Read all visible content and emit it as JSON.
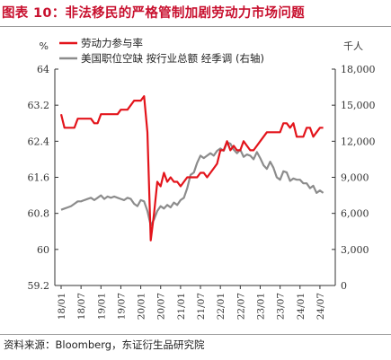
{
  "figure_title": "图表 10：非法移民的严格管制加剧劳动力市场问题",
  "source": "资料来源：Bloomberg，东证衍生品研究院",
  "colors": {
    "title": "#c8102e",
    "series_left": "#e3141b",
    "series_right": "#8c8c8c",
    "axis": "#333333"
  },
  "chart_data": {
    "type": "line",
    "left_axis": {
      "unit": "%",
      "ylim": [
        59.2,
        64.0
      ],
      "ticks": [
        "64",
        "63.2",
        "62.4",
        "61.6",
        "60.8",
        "60",
        "59.2"
      ]
    },
    "right_axis": {
      "unit": "千人",
      "ylim": [
        0,
        18000
      ],
      "ticks": [
        "18,000",
        "15,000",
        "12,000",
        "9,000",
        "6,000",
        "3,000",
        "0"
      ]
    },
    "x_ticks": [
      "18/01",
      "18/07",
      "19/01",
      "19/07",
      "20/01",
      "20/07",
      "21/01",
      "21/07",
      "22/01",
      "22/07",
      "23/01",
      "23/07",
      "24/01",
      "24/07"
    ],
    "legend_position": "top-left",
    "grid": false,
    "series": [
      {
        "name": "劳动力参与率",
        "axis": "left",
        "x": [
          "2018-01",
          "2018-02",
          "2018-03",
          "2018-04",
          "2018-05",
          "2018-06",
          "2018-07",
          "2018-08",
          "2018-09",
          "2018-10",
          "2018-11",
          "2018-12",
          "2019-01",
          "2019-02",
          "2019-03",
          "2019-04",
          "2019-05",
          "2019-06",
          "2019-07",
          "2019-08",
          "2019-09",
          "2019-10",
          "2019-11",
          "2019-12",
          "2020-01",
          "2020-02",
          "2020-03",
          "2020-04",
          "2020-05",
          "2020-06",
          "2020-07",
          "2020-08",
          "2020-09",
          "2020-10",
          "2020-11",
          "2020-12",
          "2021-01",
          "2021-02",
          "2021-03",
          "2021-04",
          "2021-05",
          "2021-06",
          "2021-07",
          "2021-08",
          "2021-09",
          "2021-10",
          "2021-11",
          "2021-12",
          "2022-01",
          "2022-02",
          "2022-03",
          "2022-04",
          "2022-05",
          "2022-06",
          "2022-07",
          "2022-08",
          "2022-09",
          "2022-10",
          "2022-11",
          "2022-12",
          "2023-01",
          "2023-02",
          "2023-03",
          "2023-04",
          "2023-05",
          "2023-06",
          "2023-07",
          "2023-08",
          "2023-09",
          "2023-10",
          "2023-11",
          "2023-12",
          "2024-01",
          "2024-02",
          "2024-03",
          "2024-04",
          "2024-05",
          "2024-06",
          "2024-07",
          "2024-08"
        ],
        "values": [
          63.0,
          62.7,
          62.7,
          62.7,
          62.7,
          62.9,
          62.9,
          62.9,
          62.9,
          62.9,
          62.8,
          62.8,
          63.0,
          63.0,
          63.0,
          63.0,
          63.0,
          63.0,
          63.1,
          63.1,
          63.1,
          63.2,
          63.3,
          63.3,
          63.3,
          63.4,
          62.6,
          60.2,
          60.8,
          61.5,
          61.4,
          61.7,
          61.5,
          61.6,
          61.5,
          61.5,
          61.4,
          61.5,
          61.6,
          61.6,
          61.6,
          61.6,
          61.7,
          61.7,
          61.6,
          61.7,
          61.8,
          61.9,
          62.2,
          62.2,
          62.4,
          62.2,
          62.3,
          62.2,
          62.2,
          62.4,
          62.3,
          62.2,
          62.2,
          62.3,
          62.4,
          62.5,
          62.6,
          62.6,
          62.6,
          62.6,
          62.6,
          62.8,
          62.8,
          62.7,
          62.8,
          62.5,
          62.5,
          62.5,
          62.7,
          62.7,
          62.5,
          62.6,
          62.7,
          62.7
        ]
      },
      {
        "name": "美国职位空缺 按行业总额 经季调 (右轴)",
        "axis": "right",
        "x": [
          "2018-01",
          "2018-02",
          "2018-03",
          "2018-04",
          "2018-05",
          "2018-06",
          "2018-07",
          "2018-08",
          "2018-09",
          "2018-10",
          "2018-11",
          "2018-12",
          "2019-01",
          "2019-02",
          "2019-03",
          "2019-04",
          "2019-05",
          "2019-06",
          "2019-07",
          "2019-08",
          "2019-09",
          "2019-10",
          "2019-11",
          "2019-12",
          "2020-01",
          "2020-02",
          "2020-03",
          "2020-04",
          "2020-05",
          "2020-06",
          "2020-07",
          "2020-08",
          "2020-09",
          "2020-10",
          "2020-11",
          "2020-12",
          "2021-01",
          "2021-02",
          "2021-03",
          "2021-04",
          "2021-05",
          "2021-06",
          "2021-07",
          "2021-08",
          "2021-09",
          "2021-10",
          "2021-11",
          "2021-12",
          "2022-01",
          "2022-02",
          "2022-03",
          "2022-04",
          "2022-05",
          "2022-06",
          "2022-07",
          "2022-08",
          "2022-09",
          "2022-10",
          "2022-11",
          "2022-12",
          "2023-01",
          "2023-02",
          "2023-03",
          "2023-04",
          "2023-05",
          "2023-06",
          "2023-07",
          "2023-08",
          "2023-09",
          "2023-10",
          "2023-11",
          "2023-12",
          "2024-01",
          "2024-02",
          "2024-03",
          "2024-04",
          "2024-05",
          "2024-06",
          "2024-07",
          "2024-08"
        ],
        "values": [
          6300,
          6400,
          6500,
          6600,
          6800,
          7000,
          7000,
          7100,
          7200,
          7300,
          7100,
          7300,
          7500,
          7200,
          7400,
          7300,
          7400,
          7300,
          7200,
          7100,
          7300,
          7200,
          6800,
          6600,
          7100,
          7000,
          6200,
          5000,
          5500,
          6200,
          6600,
          6400,
          6700,
          6500,
          6900,
          6700,
          7100,
          7300,
          8100,
          9200,
          9400,
          10200,
          10800,
          10600,
          10800,
          11000,
          10800,
          11200,
          11400,
          11200,
          11900,
          11800,
          11300,
          11000,
          11300,
          10700,
          10900,
          10800,
          10500,
          11100,
          10600,
          10000,
          9700,
          10300,
          9800,
          9000,
          8800,
          9500,
          9400,
          8700,
          8900,
          8800,
          8800,
          8500,
          8500,
          8100,
          8300,
          7700,
          7900,
          7700
        ]
      }
    ]
  }
}
